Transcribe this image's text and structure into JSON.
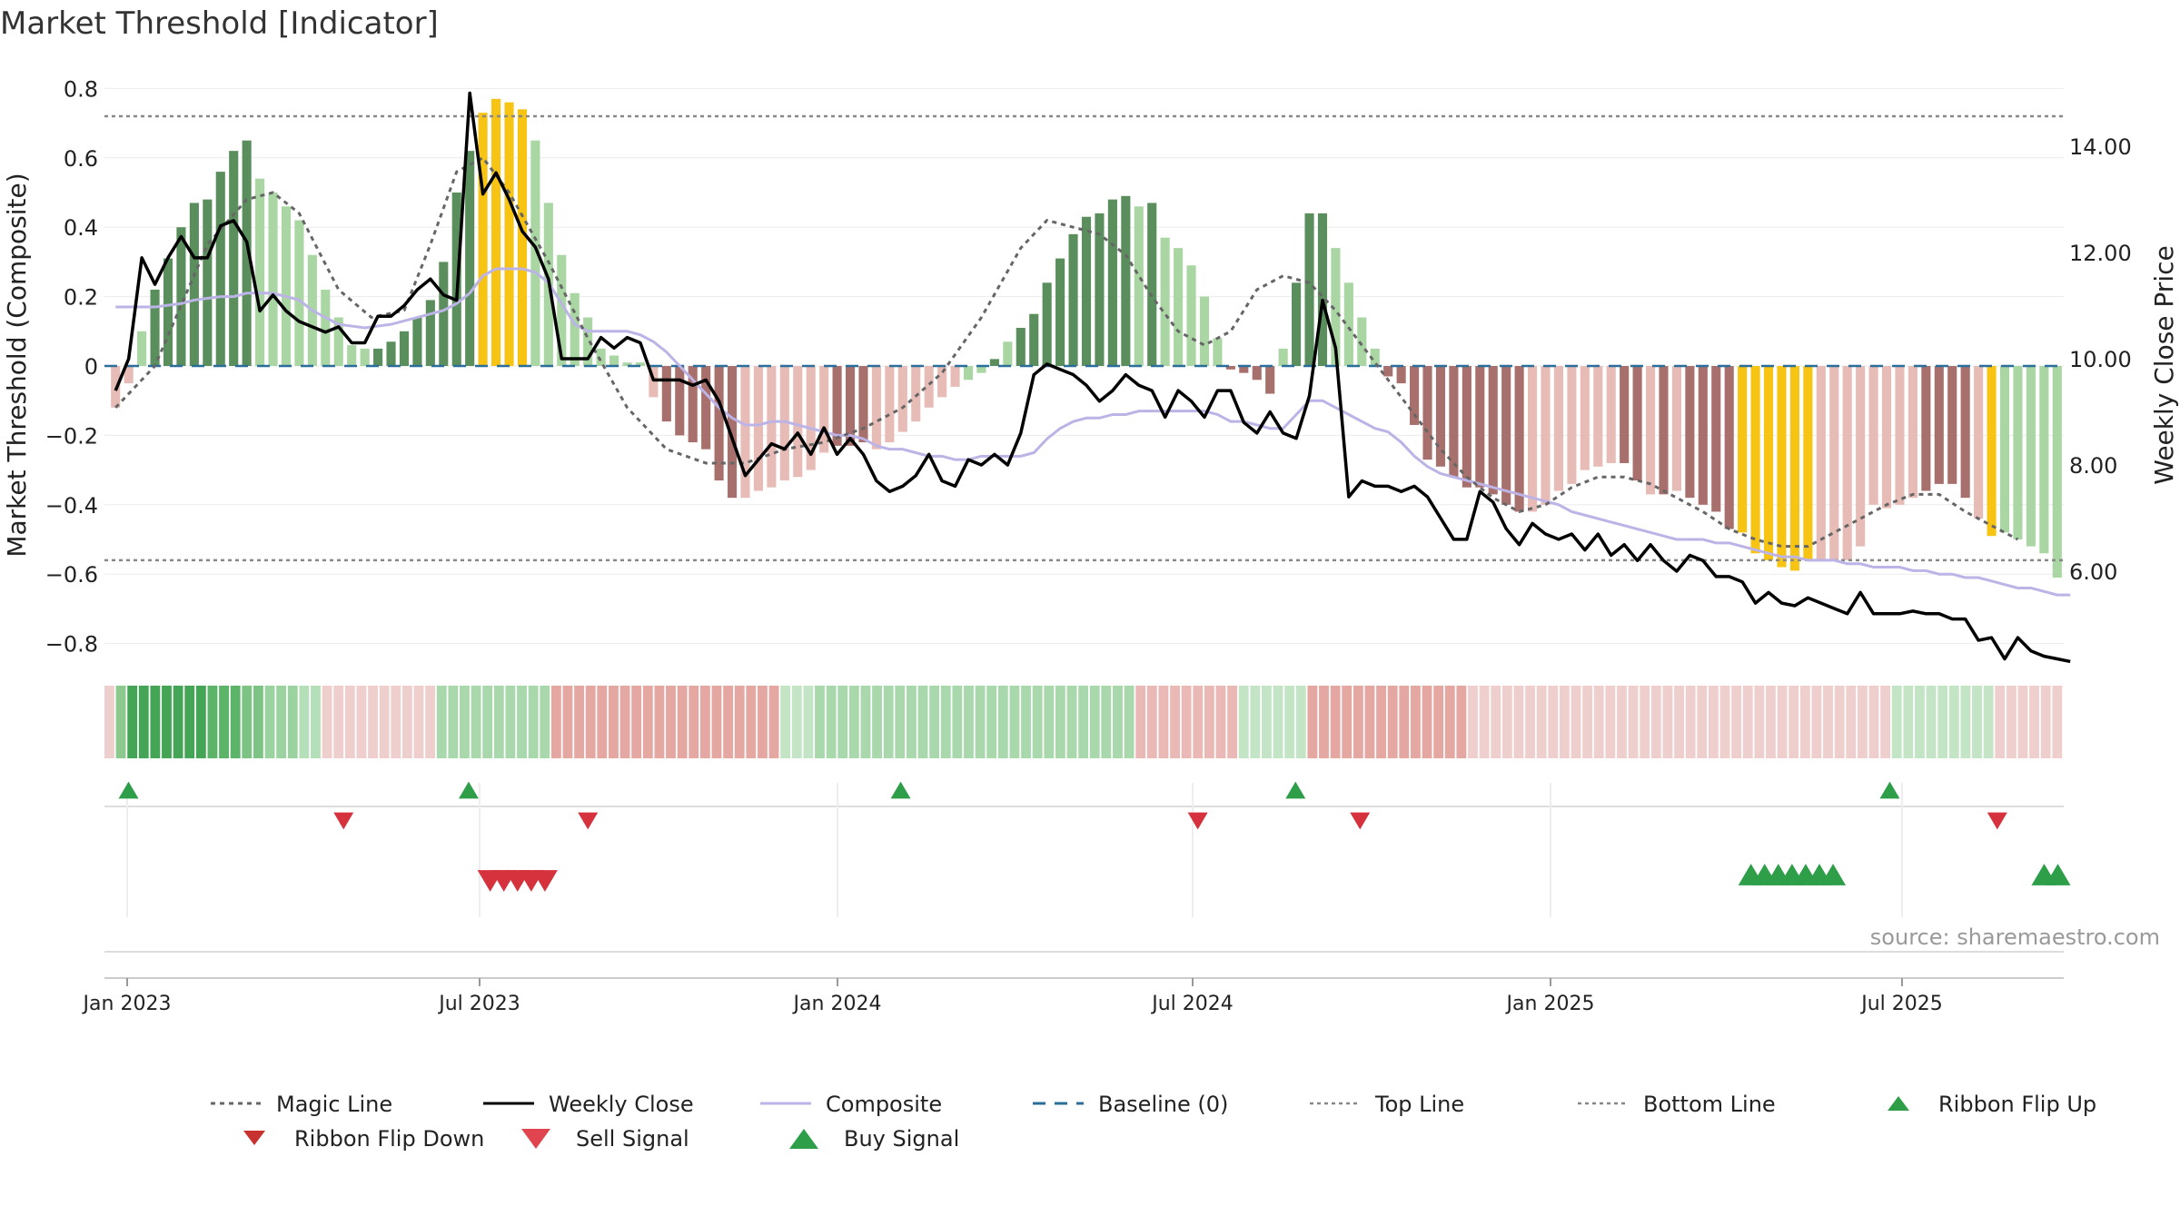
{
  "title": "Market Threshold [Indicator]",
  "source": "source: sharemaestro.com",
  "colors": {
    "strong_green": "#5a8f5d",
    "light_green": "#a9d6a3",
    "strong_red": "#a8706c",
    "light_red": "#e8bcb6",
    "gold": "#f7c414",
    "close": "#000000",
    "composite": "#bcb3e6",
    "magic": "#666666",
    "baseline": "#2a6f9b",
    "buy": "#2e9e49",
    "sell": "#d6323d"
  },
  "chart_data": {
    "type": "bar",
    "ylabel_left": "Market Threshold (Composite)",
    "ylabel_right": "Weekly Close Price",
    "y_left_ticks": [
      "0.8",
      "0.6",
      "0.4",
      "0.2",
      "0",
      "−0.2",
      "−0.4",
      "−0.6",
      "−0.8"
    ],
    "y_left_range": [
      -0.85,
      0.8
    ],
    "y_right_ticks": [
      "14.00",
      "12.00",
      "10.00",
      "8.00",
      "6.00"
    ],
    "y_right_range": [
      4.3,
      15.9
    ],
    "x_ticks": [
      "Jan 2023",
      "Jul 2023",
      "Jan 2024",
      "Jul 2024",
      "Jan 2025",
      "Jul 2025"
    ],
    "top_line": 0.72,
    "bottom_line": -0.56,
    "composite_bars": [
      -0.12,
      -0.05,
      0.1,
      0.22,
      0.31,
      0.4,
      0.47,
      0.48,
      0.56,
      0.62,
      0.65,
      0.54,
      0.5,
      0.46,
      0.42,
      0.32,
      0.22,
      0.14,
      0.06,
      0.05,
      0.05,
      0.07,
      0.1,
      0.14,
      0.19,
      0.3,
      0.5,
      0.62,
      0.73,
      0.77,
      0.76,
      0.74,
      0.65,
      0.47,
      0.32,
      0.21,
      0.14,
      0.05,
      0.03,
      0.01,
      0.01,
      -0.09,
      -0.16,
      -0.2,
      -0.22,
      -0.24,
      -0.33,
      -0.38,
      -0.38,
      -0.36,
      -0.35,
      -0.33,
      -0.32,
      -0.3,
      -0.25,
      -0.23,
      -0.23,
      -0.22,
      -0.24,
      -0.22,
      -0.19,
      -0.16,
      -0.12,
      -0.09,
      -0.06,
      -0.04,
      -0.02,
      0.02,
      0.07,
      0.11,
      0.15,
      0.24,
      0.31,
      0.38,
      0.43,
      0.44,
      0.48,
      0.49,
      0.46,
      0.47,
      0.37,
      0.34,
      0.29,
      0.2,
      0.08,
      -0.01,
      -0.02,
      -0.04,
      -0.08,
      0.05,
      0.24,
      0.44,
      0.44,
      0.34,
      0.24,
      0.14,
      0.05,
      -0.03,
      -0.05,
      -0.17,
      -0.27,
      -0.29,
      -0.32,
      -0.35,
      -0.35,
      -0.37,
      -0.4,
      -0.42,
      -0.42,
      -0.4,
      -0.36,
      -0.34,
      -0.3,
      -0.29,
      -0.28,
      -0.28,
      -0.33,
      -0.37,
      -0.37,
      -0.36,
      -0.38,
      -0.4,
      -0.42,
      -0.47,
      -0.48,
      -0.54,
      -0.56,
      -0.58,
      -0.59,
      -0.56,
      -0.56,
      -0.56,
      -0.56,
      -0.52,
      -0.4,
      -0.41,
      -0.4,
      -0.38,
      -0.36,
      -0.34,
      -0.34,
      -0.38,
      -0.44,
      -0.49,
      -0.48,
      -0.5,
      -0.52,
      -0.54,
      -0.61
    ],
    "bar_styles": [
      "lr",
      "lr",
      "lg",
      "sg",
      "sg",
      "sg",
      "sg",
      "sg",
      "sg",
      "sg",
      "sg",
      "lg",
      "lg",
      "lg",
      "lg",
      "lg",
      "lg",
      "lg",
      "lg",
      "lg",
      "sg",
      "sg",
      "sg",
      "sg",
      "sg",
      "sg",
      "sg",
      "sg",
      "au",
      "au",
      "au",
      "au",
      "lg",
      "lg",
      "lg",
      "lg",
      "lg",
      "lg",
      "lg",
      "lg",
      "lg",
      "lr",
      "sr",
      "sr",
      "sr",
      "sr",
      "sr",
      "sr",
      "lr",
      "lr",
      "lr",
      "lr",
      "lr",
      "lr",
      "lr",
      "sr",
      "sr",
      "sr",
      "lr",
      "lr",
      "lr",
      "lr",
      "lr",
      "lr",
      "lr",
      "lg",
      "lg",
      "sg",
      "lg",
      "sg",
      "sg",
      "sg",
      "sg",
      "sg",
      "sg",
      "sg",
      "sg",
      "sg",
      "lg",
      "sg",
      "lg",
      "lg",
      "lg",
      "lg",
      "lg",
      "sr",
      "sr",
      "sr",
      "sr",
      "lg",
      "sg",
      "sg",
      "sg",
      "lg",
      "lg",
      "lg",
      "lg",
      "sr",
      "sr",
      "sr",
      "sr",
      "sr",
      "sr",
      "sr",
      "sr",
      "sr",
      "sr",
      "sr",
      "lr",
      "lr",
      "lr",
      "lr",
      "lr",
      "lr",
      "lr",
      "sr",
      "sr",
      "lr",
      "sr",
      "lr",
      "sr",
      "sr",
      "sr",
      "sr",
      "au",
      "au",
      "au",
      "au",
      "au",
      "au",
      "lr",
      "lr",
      "lr",
      "lr",
      "lr",
      "lr",
      "lr",
      "lr",
      "sr",
      "sr",
      "sr",
      "sr",
      "lr",
      "au"
    ],
    "weekly_close": [
      9.4,
      10.0,
      11.9,
      11.4,
      11.9,
      12.3,
      11.9,
      11.9,
      12.5,
      12.6,
      12.2,
      10.9,
      11.2,
      10.9,
      10.7,
      10.6,
      10.5,
      10.6,
      10.3,
      10.3,
      10.8,
      10.8,
      11.0,
      11.3,
      11.5,
      11.2,
      11.1,
      15.0,
      13.1,
      13.5,
      13.0,
      12.4,
      12.1,
      11.5,
      10.0,
      10.0,
      10.0,
      10.4,
      10.2,
      10.4,
      10.3,
      9.6,
      9.6,
      9.6,
      9.5,
      9.6,
      9.2,
      8.5,
      7.8,
      8.1,
      8.4,
      8.3,
      8.6,
      8.2,
      8.7,
      8.2,
      8.5,
      8.2,
      7.7,
      7.5,
      7.6,
      7.8,
      8.2,
      7.7,
      7.6,
      8.1,
      8.0,
      8.2,
      8.0,
      8.6,
      9.7,
      9.9,
      9.8,
      9.7,
      9.5,
      9.2,
      9.4,
      9.7,
      9.5,
      9.4,
      8.9,
      9.4,
      9.2,
      8.9,
      9.4,
      9.4,
      8.8,
      8.6,
      9.0,
      8.6,
      8.5,
      9.3,
      11.1,
      10.2,
      7.4,
      7.7,
      7.6,
      7.6,
      7.5,
      7.6,
      7.4,
      7.0,
      6.6,
      6.6,
      7.5,
      7.3,
      6.8,
      6.5,
      6.9,
      6.7,
      6.6,
      6.7,
      6.4,
      6.7,
      6.3,
      6.5,
      6.2,
      6.5,
      6.2,
      6.0,
      6.3,
      6.2,
      5.9,
      5.9,
      5.8,
      5.4,
      5.6,
      5.4,
      5.35,
      5.5,
      5.4,
      5.3,
      5.2,
      5.6,
      5.2,
      5.2,
      5.2,
      5.25,
      5.2,
      5.2,
      5.1,
      5.1,
      4.7,
      4.75,
      4.35,
      4.75,
      4.5,
      4.4,
      4.35,
      4.3
    ],
    "composite_line": [
      0.17,
      0.17,
      0.17,
      0.17,
      0.175,
      0.18,
      0.19,
      0.195,
      0.2,
      0.2,
      0.21,
      0.21,
      0.21,
      0.2,
      0.19,
      0.16,
      0.14,
      0.12,
      0.115,
      0.11,
      0.115,
      0.12,
      0.13,
      0.14,
      0.15,
      0.16,
      0.18,
      0.21,
      0.26,
      0.28,
      0.28,
      0.28,
      0.27,
      0.24,
      0.18,
      0.12,
      0.1,
      0.1,
      0.1,
      0.1,
      0.09,
      0.07,
      0.04,
      0.0,
      -0.04,
      -0.08,
      -0.12,
      -0.15,
      -0.17,
      -0.17,
      -0.16,
      -0.16,
      -0.17,
      -0.18,
      -0.19,
      -0.2,
      -0.2,
      -0.21,
      -0.23,
      -0.24,
      -0.24,
      -0.25,
      -0.26,
      -0.26,
      -0.27,
      -0.27,
      -0.26,
      -0.26,
      -0.26,
      -0.26,
      -0.25,
      -0.21,
      -0.18,
      -0.16,
      -0.15,
      -0.15,
      -0.14,
      -0.14,
      -0.13,
      -0.13,
      -0.13,
      -0.13,
      -0.13,
      -0.13,
      -0.14,
      -0.16,
      -0.16,
      -0.17,
      -0.18,
      -0.18,
      -0.14,
      -0.1,
      -0.1,
      -0.12,
      -0.14,
      -0.16,
      -0.18,
      -0.19,
      -0.22,
      -0.26,
      -0.29,
      -0.31,
      -0.32,
      -0.33,
      -0.34,
      -0.35,
      -0.36,
      -0.37,
      -0.38,
      -0.39,
      -0.4,
      -0.42,
      -0.43,
      -0.44,
      -0.45,
      -0.46,
      -0.47,
      -0.48,
      -0.49,
      -0.5,
      -0.5,
      -0.5,
      -0.51,
      -0.51,
      -0.52,
      -0.53,
      -0.54,
      -0.55,
      -0.55,
      -0.56,
      -0.56,
      -0.56,
      -0.57,
      -0.57,
      -0.58,
      -0.58,
      -0.58,
      -0.59,
      -0.59,
      -0.6,
      -0.6,
      -0.61,
      -0.61,
      -0.62,
      -0.63,
      -0.64,
      -0.64,
      -0.65,
      -0.66,
      -0.66
    ],
    "magic_line_points": [
      [
        0,
        -0.12
      ],
      [
        6,
        0.0
      ],
      [
        14,
        0.35
      ],
      [
        20,
        0.48
      ],
      [
        24,
        0.5
      ],
      [
        28,
        0.44
      ],
      [
        34,
        0.22
      ],
      [
        39,
        0.14
      ],
      [
        44,
        0.16
      ],
      [
        48,
        0.35
      ],
      [
        52,
        0.56
      ],
      [
        56,
        0.6
      ],
      [
        60,
        0.5
      ],
      [
        66,
        0.3
      ],
      [
        72,
        0.08
      ],
      [
        78,
        -0.12
      ],
      [
        84,
        -0.24
      ],
      [
        90,
        -0.28
      ],
      [
        96,
        -0.28
      ],
      [
        102,
        -0.24
      ],
      [
        108,
        -0.22
      ],
      [
        114,
        -0.18
      ],
      [
        120,
        -0.12
      ],
      [
        126,
        -0.02
      ],
      [
        132,
        0.14
      ],
      [
        138,
        0.34
      ],
      [
        142,
        0.42
      ],
      [
        146,
        0.4
      ],
      [
        150,
        0.38
      ],
      [
        154,
        0.32
      ],
      [
        158,
        0.2
      ],
      [
        162,
        0.1
      ],
      [
        166,
        0.06
      ],
      [
        170,
        0.1
      ],
      [
        174,
        0.22
      ],
      [
        178,
        0.26
      ],
      [
        182,
        0.24
      ],
      [
        186,
        0.16
      ],
      [
        190,
        0.06
      ],
      [
        194,
        -0.04
      ],
      [
        198,
        -0.14
      ],
      [
        202,
        -0.24
      ],
      [
        206,
        -0.32
      ],
      [
        210,
        -0.38
      ],
      [
        214,
        -0.42
      ],
      [
        218,
        -0.4
      ],
      [
        222,
        -0.35
      ],
      [
        226,
        -0.32
      ],
      [
        230,
        -0.32
      ],
      [
        234,
        -0.34
      ],
      [
        238,
        -0.38
      ],
      [
        242,
        -0.42
      ],
      [
        246,
        -0.47
      ],
      [
        250,
        -0.5
      ],
      [
        254,
        -0.52
      ],
      [
        258,
        -0.52
      ],
      [
        262,
        -0.48
      ],
      [
        266,
        -0.44
      ],
      [
        270,
        -0.4
      ],
      [
        274,
        -0.37
      ],
      [
        278,
        -0.37
      ],
      [
        282,
        -0.42
      ],
      [
        286,
        -0.46
      ],
      [
        290,
        -0.5
      ]
    ],
    "ribbon_colors": [
      "#efcfcd",
      "#8bc98f",
      "#45a556",
      "#45a556",
      "#45a556",
      "#45a556",
      "#45a556",
      "#45a556",
      "#45a556",
      "#5cb468",
      "#5cb468",
      "#5cb468",
      "#7cc384",
      "#7cc384",
      "#9ad3a0",
      "#9ad3a0",
      "#9ad3a0",
      "#b5dfb8",
      "#b5dfb8",
      "#efcfcd",
      "#efcfcd",
      "#efcfcd",
      "#efcfcd",
      "#efcfcd",
      "#efcfcd",
      "#efcfcd",
      "#efcfcd",
      "#efcfcd",
      "#efcfcd",
      "#a9d8ad",
      "#a9d8ad",
      "#a9d8ad",
      "#a9d8ad",
      "#a9d8ad",
      "#a9d8ad",
      "#a9d8ad",
      "#a9d8ad",
      "#a9d8ad",
      "#a9d8ad",
      "#e4a7a2",
      "#e4a7a2",
      "#e4a7a2",
      "#e4a7a2",
      "#e4a7a2",
      "#e4a7a2",
      "#e4a7a2",
      "#e4a7a2",
      "#e4a7a2",
      "#e4a7a2",
      "#e4a7a2",
      "#e4a7a2",
      "#e4a7a2",
      "#e4a7a2",
      "#e4a7a2",
      "#e4a7a2",
      "#e4a7a2",
      "#e4a7a2",
      "#e4a7a2",
      "#e4a7a2",
      "#c3e5c6",
      "#c3e5c6",
      "#c3e5c6",
      "#a9d8ad",
      "#a9d8ad",
      "#a9d8ad",
      "#a9d8ad",
      "#a9d8ad",
      "#a9d8ad",
      "#a9d8ad",
      "#a9d8ad",
      "#a9d8ad",
      "#a9d8ad",
      "#a9d8ad",
      "#a9d8ad",
      "#a9d8ad",
      "#a9d8ad",
      "#a9d8ad",
      "#a9d8ad",
      "#a9d8ad",
      "#a9d8ad",
      "#a9d8ad",
      "#a9d8ad",
      "#a9d8ad",
      "#a9d8ad",
      "#a9d8ad",
      "#a9d8ad",
      "#a9d8ad",
      "#a9d8ad",
      "#a9d8ad",
      "#a9d8ad",
      "#eab9b5",
      "#eab9b5",
      "#eab9b5",
      "#eab9b5",
      "#eab9b5",
      "#eab9b5",
      "#eab9b5",
      "#eab9b5",
      "#eab9b5",
      "#c3e5c6",
      "#c3e5c6",
      "#c3e5c6",
      "#c3e5c6",
      "#c3e5c6",
      "#c3e5c6",
      "#e4a7a2",
      "#e4a7a2",
      "#e4a7a2",
      "#e4a7a2",
      "#e4a7a2",
      "#e4a7a2",
      "#e4a7a2",
      "#e4a7a2",
      "#e4a7a2",
      "#e4a7a2",
      "#e4a7a2",
      "#e4a7a2",
      "#e4a7a2",
      "#e4a7a2",
      "#efcfcd",
      "#efcfcd",
      "#efcfcd",
      "#efcfcd",
      "#efcfcd",
      "#efcfcd",
      "#efcfcd",
      "#efcfcd",
      "#efcfcd",
      "#efcfcd",
      "#efcfcd",
      "#efcfcd",
      "#efcfcd",
      "#efcfcd",
      "#efcfcd",
      "#efcfcd",
      "#efcfcd",
      "#efcfcd",
      "#efcfcd",
      "#efcfcd",
      "#efcfcd",
      "#efcfcd",
      "#efcfcd",
      "#efcfcd",
      "#efcfcd",
      "#efcfcd",
      "#efcfcd",
      "#efcfcd",
      "#efcfcd",
      "#efcfcd",
      "#efcfcd",
      "#efcfcd",
      "#efcfcd",
      "#efcfcd",
      "#efcfcd",
      "#efcfcd",
      "#efcfcd",
      "#c3e5c6",
      "#c3e5c6",
      "#c3e5c6",
      "#c3e5c6",
      "#c3e5c6",
      "#c3e5c6",
      "#c3e5c6",
      "#c3e5c6",
      "#c3e5c6",
      "#efcfcd",
      "#efcfcd",
      "#efcfcd",
      "#efcfcd",
      "#efcfcd",
      "#efcfcd"
    ],
    "ribbon_flip_up_x": [
      0.01,
      0.184,
      0.405,
      0.607,
      0.911
    ],
    "ribbon_flip_down_x": [
      0.12,
      0.245,
      0.557,
      0.64,
      0.966
    ],
    "sell_signal_x": [
      0.195,
      0.202,
      0.209,
      0.216,
      0.223
    ],
    "buy_signal_x": [
      0.84,
      0.847,
      0.854,
      0.861,
      0.868,
      0.875,
      0.882,
      0.99,
      0.997
    ]
  },
  "legend": [
    {
      "label": "Magic Line",
      "kind": "dotted"
    },
    {
      "label": "Weekly Close",
      "kind": "solid-black"
    },
    {
      "label": "Composite",
      "kind": "solid-lavender"
    },
    {
      "label": "Baseline (0)",
      "kind": "dashed-blue"
    },
    {
      "label": "Top Line",
      "kind": "dotted-light"
    },
    {
      "label": "Bottom Line",
      "kind": "dotted-light"
    },
    {
      "label": "Ribbon Flip Up",
      "kind": "triangle-up-dark"
    },
    {
      "label": "Ribbon Flip Down",
      "kind": "triangle-down-dark"
    },
    {
      "label": "Sell Signal",
      "kind": "triangle-down-red"
    },
    {
      "label": "Buy Signal",
      "kind": "triangle-up-green"
    }
  ]
}
